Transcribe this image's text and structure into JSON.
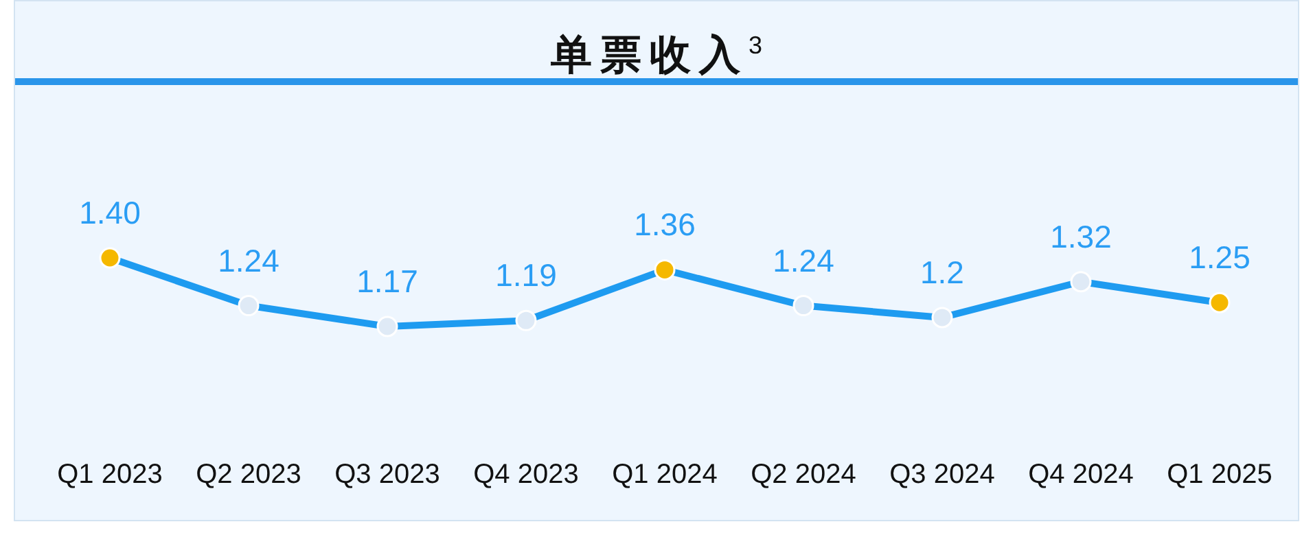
{
  "chart_data": {
    "type": "line",
    "title": "单票收入$^{3}$",
    "categories": [
      "Q1 2023",
      "Q2 2023",
      "Q3 2023",
      "Q4 2023",
      "Q1 2024",
      "Q2 2024",
      "Q3 2024",
      "Q4 2024",
      "Q1 2025"
    ],
    "series": [
      {
        "color": "#1e9bf0",
        "values": [
          1.4,
          1.24,
          1.17,
          1.19,
          1.36,
          1.24,
          1.2,
          1.32,
          1.25
        ],
        "colors": [
          "#f5b800",
          "#dfeaf6",
          "#dfeaf6",
          "#dfeaf6",
          "#f5b800",
          "#dfeaf6",
          "#dfeaf6",
          "#dfeaf6",
          "#f5b800"
        ],
        "value_labels": [
          "1.40",
          "1.24",
          "1.17",
          "1.19",
          "1.36",
          "1.24",
          "1.2",
          "1.32",
          "1.25"
        ]
      }
    ],
    "marker": "circle",
    "line_style": "solid"
  }
}
